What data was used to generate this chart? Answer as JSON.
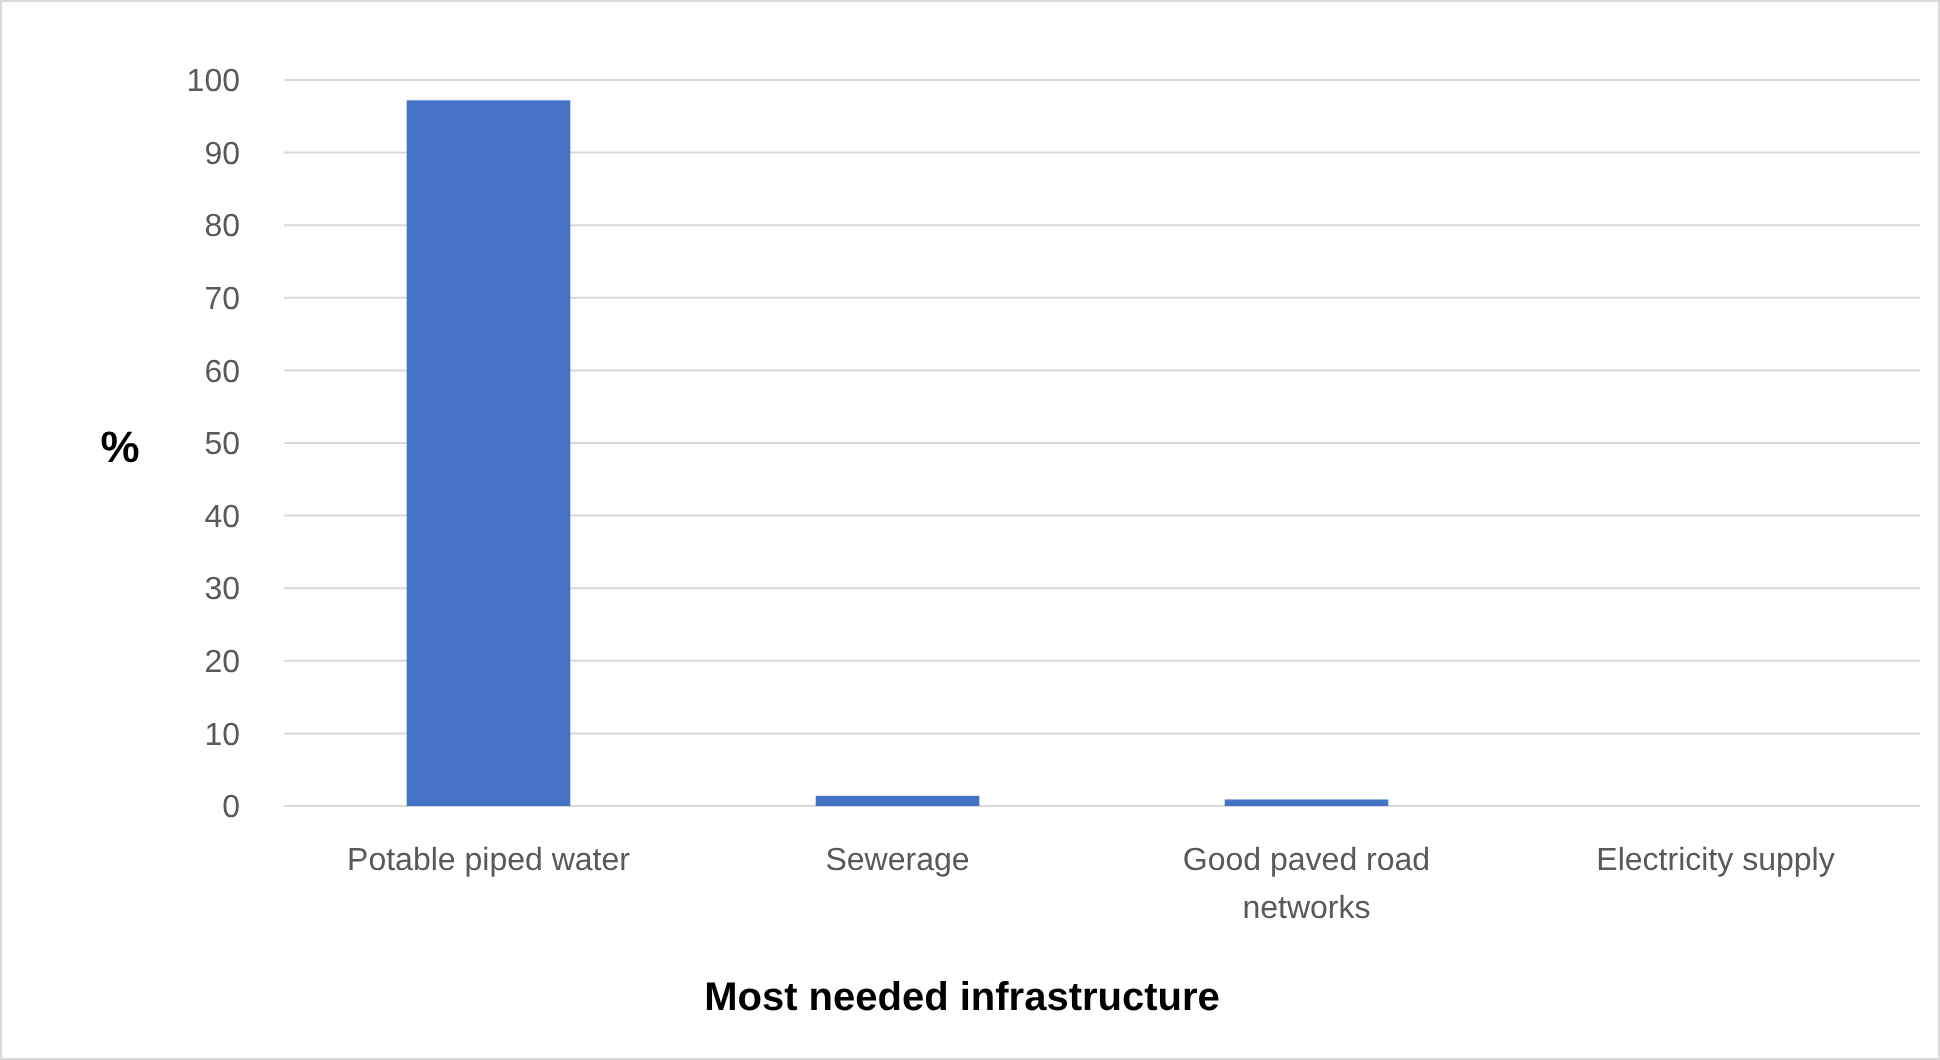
{
  "chart_data": {
    "type": "bar",
    "categories": [
      "Potable piped water",
      "Sewerage",
      "Good paved road networks",
      "Electricity supply"
    ],
    "values": [
      97.2,
      1.4,
      0.9,
      0
    ],
    "color": "#4472c4",
    "xlabel": "Most needed infrastructure",
    "ylabel": "%",
    "ylim": [
      0,
      100
    ],
    "yticks": [
      0,
      10,
      20,
      30,
      40,
      50,
      60,
      70,
      80,
      90,
      100
    ],
    "grid": "y"
  }
}
